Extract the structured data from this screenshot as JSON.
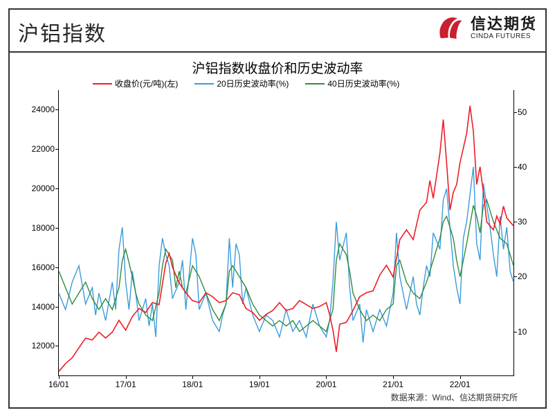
{
  "page_title": "沪铝指数",
  "brand": {
    "cn": "信达期货",
    "en": "CINDA FUTURES",
    "logo_color": "#c91f2e"
  },
  "chart": {
    "type": "line",
    "title": "沪铝指数收盘价和历史波动率",
    "title_fontsize": 19,
    "background_color": "#ffffff",
    "axis_color": "#000000",
    "label_fontsize": 12,
    "x": {
      "ticks": [
        "16/01",
        "17/01",
        "18/01",
        "19/01",
        "20/01",
        "21/01",
        "22/01"
      ],
      "positions": [
        0,
        1,
        2,
        3,
        4,
        5,
        6
      ],
      "xmax": 6.8
    },
    "y_left": {
      "label_suffix": "",
      "ticks": [
        12000,
        14000,
        16000,
        18000,
        20000,
        22000,
        24000
      ],
      "ymin": 10500,
      "ymax": 25000
    },
    "y_right": {
      "ticks": [
        10,
        20,
        30,
        40,
        50
      ],
      "ymin": 2,
      "ymax": 54
    },
    "legend": [
      {
        "label": "收盘价(元/吨)(左)",
        "color": "#ee1c25"
      },
      {
        "label": "20日历史波动率(%)",
        "color": "#3a9bdc"
      },
      {
        "label": "40日历史波动率(%)",
        "color": "#2e8b3d"
      }
    ],
    "series": {
      "close": {
        "axis": "left",
        "color": "#ee1c25",
        "width": 1.6,
        "data": [
          [
            0.0,
            10700
          ],
          [
            0.1,
            11100
          ],
          [
            0.2,
            11400
          ],
          [
            0.3,
            11900
          ],
          [
            0.4,
            12400
          ],
          [
            0.5,
            12300
          ],
          [
            0.6,
            12700
          ],
          [
            0.7,
            12400
          ],
          [
            0.8,
            12700
          ],
          [
            0.9,
            13300
          ],
          [
            1.0,
            12800
          ],
          [
            1.1,
            13500
          ],
          [
            1.2,
            13900
          ],
          [
            1.3,
            13700
          ],
          [
            1.4,
            14200
          ],
          [
            1.5,
            14100
          ],
          [
            1.6,
            16200
          ],
          [
            1.65,
            16700
          ],
          [
            1.7,
            16000
          ],
          [
            1.8,
            15200
          ],
          [
            1.9,
            14700
          ],
          [
            2.0,
            14300
          ],
          [
            2.1,
            14200
          ],
          [
            2.2,
            14700
          ],
          [
            2.3,
            14500
          ],
          [
            2.4,
            14200
          ],
          [
            2.5,
            14300
          ],
          [
            2.6,
            14700
          ],
          [
            2.7,
            14600
          ],
          [
            2.8,
            13900
          ],
          [
            2.9,
            13700
          ],
          [
            3.0,
            13300
          ],
          [
            3.1,
            13600
          ],
          [
            3.2,
            13800
          ],
          [
            3.3,
            14200
          ],
          [
            3.4,
            13800
          ],
          [
            3.5,
            13900
          ],
          [
            3.6,
            14300
          ],
          [
            3.7,
            14100
          ],
          [
            3.8,
            13900
          ],
          [
            3.9,
            14000
          ],
          [
            4.0,
            14200
          ],
          [
            4.05,
            13600
          ],
          [
            4.1,
            12800
          ],
          [
            4.15,
            11700
          ],
          [
            4.2,
            13100
          ],
          [
            4.3,
            13200
          ],
          [
            4.4,
            13800
          ],
          [
            4.5,
            14500
          ],
          [
            4.6,
            14700
          ],
          [
            4.7,
            14800
          ],
          [
            4.8,
            15600
          ],
          [
            4.9,
            16100
          ],
          [
            5.0,
            15500
          ],
          [
            5.1,
            17400
          ],
          [
            5.2,
            17900
          ],
          [
            5.3,
            17400
          ],
          [
            5.4,
            18900
          ],
          [
            5.5,
            19300
          ],
          [
            5.55,
            20400
          ],
          [
            5.6,
            19500
          ],
          [
            5.7,
            21800
          ],
          [
            5.75,
            23500
          ],
          [
            5.8,
            21300
          ],
          [
            5.85,
            18900
          ],
          [
            5.9,
            19800
          ],
          [
            5.95,
            20200
          ],
          [
            6.0,
            21300
          ],
          [
            6.1,
            22800
          ],
          [
            6.15,
            24200
          ],
          [
            6.2,
            22900
          ],
          [
            6.25,
            20200
          ],
          [
            6.3,
            21100
          ],
          [
            6.35,
            19800
          ],
          [
            6.4,
            18300
          ],
          [
            6.5,
            17900
          ],
          [
            6.55,
            18600
          ],
          [
            6.6,
            18200
          ],
          [
            6.65,
            19100
          ],
          [
            6.7,
            18500
          ],
          [
            6.8,
            18100
          ]
        ]
      },
      "vol20": {
        "axis": "right",
        "color": "#3a9bdc",
        "width": 1.4,
        "data": [
          [
            0.0,
            17
          ],
          [
            0.1,
            14
          ],
          [
            0.2,
            19
          ],
          [
            0.3,
            22
          ],
          [
            0.4,
            15
          ],
          [
            0.5,
            18
          ],
          [
            0.55,
            13
          ],
          [
            0.6,
            17
          ],
          [
            0.7,
            12
          ],
          [
            0.8,
            19
          ],
          [
            0.85,
            14
          ],
          [
            0.9,
            25
          ],
          [
            0.95,
            29
          ],
          [
            1.0,
            19
          ],
          [
            1.05,
            14
          ],
          [
            1.1,
            21
          ],
          [
            1.15,
            17
          ],
          [
            1.2,
            12
          ],
          [
            1.3,
            16
          ],
          [
            1.35,
            11
          ],
          [
            1.4,
            15
          ],
          [
            1.45,
            9
          ],
          [
            1.5,
            22
          ],
          [
            1.55,
            27
          ],
          [
            1.6,
            24
          ],
          [
            1.65,
            22
          ],
          [
            1.7,
            16
          ],
          [
            1.8,
            19
          ],
          [
            1.85,
            23
          ],
          [
            1.9,
            14
          ],
          [
            2.0,
            27
          ],
          [
            2.05,
            24
          ],
          [
            2.1,
            14
          ],
          [
            2.2,
            17
          ],
          [
            2.3,
            12
          ],
          [
            2.4,
            10
          ],
          [
            2.45,
            13
          ],
          [
            2.5,
            15
          ],
          [
            2.55,
            27
          ],
          [
            2.6,
            18
          ],
          [
            2.65,
            26
          ],
          [
            2.7,
            24
          ],
          [
            2.75,
            15
          ],
          [
            2.8,
            18
          ],
          [
            2.9,
            13
          ],
          [
            3.0,
            10
          ],
          [
            3.1,
            13
          ],
          [
            3.2,
            12
          ],
          [
            3.3,
            9
          ],
          [
            3.4,
            14
          ],
          [
            3.5,
            10
          ],
          [
            3.6,
            12
          ],
          [
            3.7,
            9
          ],
          [
            3.8,
            15
          ],
          [
            3.9,
            11
          ],
          [
            4.0,
            9
          ],
          [
            4.05,
            12
          ],
          [
            4.1,
            19
          ],
          [
            4.15,
            30
          ],
          [
            4.2,
            23
          ],
          [
            4.3,
            28
          ],
          [
            4.35,
            18
          ],
          [
            4.4,
            12
          ],
          [
            4.5,
            15
          ],
          [
            4.55,
            8
          ],
          [
            4.6,
            14
          ],
          [
            4.7,
            10
          ],
          [
            4.8,
            14
          ],
          [
            4.9,
            11
          ],
          [
            5.0,
            17
          ],
          [
            5.05,
            28
          ],
          [
            5.1,
            20
          ],
          [
            5.15,
            17
          ],
          [
            5.2,
            14
          ],
          [
            5.3,
            20
          ],
          [
            5.35,
            15
          ],
          [
            5.4,
            13
          ],
          [
            5.45,
            18
          ],
          [
            5.5,
            22
          ],
          [
            5.55,
            20
          ],
          [
            5.6,
            28
          ],
          [
            5.7,
            25
          ],
          [
            5.75,
            34
          ],
          [
            5.8,
            36
          ],
          [
            5.9,
            22
          ],
          [
            5.95,
            18
          ],
          [
            6.0,
            15
          ],
          [
            6.05,
            27
          ],
          [
            6.1,
            30
          ],
          [
            6.2,
            40
          ],
          [
            6.25,
            26
          ],
          [
            6.3,
            23
          ],
          [
            6.35,
            37
          ],
          [
            6.4,
            33
          ],
          [
            6.45,
            29
          ],
          [
            6.5,
            24
          ],
          [
            6.55,
            20
          ],
          [
            6.6,
            31
          ],
          [
            6.65,
            25
          ],
          [
            6.7,
            29
          ],
          [
            6.75,
            21
          ],
          [
            6.8,
            19
          ]
        ]
      },
      "vol40": {
        "axis": "right",
        "color": "#2e8b3d",
        "width": 1.4,
        "data": [
          [
            0.0,
            21
          ],
          [
            0.1,
            18
          ],
          [
            0.2,
            15
          ],
          [
            0.3,
            17
          ],
          [
            0.4,
            19
          ],
          [
            0.5,
            16
          ],
          [
            0.6,
            14
          ],
          [
            0.7,
            16
          ],
          [
            0.8,
            14
          ],
          [
            0.9,
            18
          ],
          [
            0.95,
            23
          ],
          [
            1.0,
            25
          ],
          [
            1.1,
            20
          ],
          [
            1.15,
            17
          ],
          [
            1.2,
            15
          ],
          [
            1.3,
            13
          ],
          [
            1.4,
            12
          ],
          [
            1.5,
            17
          ],
          [
            1.55,
            22
          ],
          [
            1.6,
            25
          ],
          [
            1.7,
            23
          ],
          [
            1.75,
            18
          ],
          [
            1.8,
            21
          ],
          [
            1.85,
            18
          ],
          [
            1.9,
            17
          ],
          [
            2.0,
            22
          ],
          [
            2.1,
            20
          ],
          [
            2.2,
            17
          ],
          [
            2.3,
            14
          ],
          [
            2.4,
            12
          ],
          [
            2.5,
            15
          ],
          [
            2.55,
            21
          ],
          [
            2.6,
            22
          ],
          [
            2.7,
            20
          ],
          [
            2.8,
            18
          ],
          [
            2.9,
            15
          ],
          [
            3.0,
            13
          ],
          [
            3.1,
            12
          ],
          [
            3.2,
            11
          ],
          [
            3.3,
            12
          ],
          [
            3.4,
            11
          ],
          [
            3.5,
            12
          ],
          [
            3.6,
            10
          ],
          [
            3.7,
            11
          ],
          [
            3.8,
            12
          ],
          [
            3.9,
            11
          ],
          [
            4.0,
            10
          ],
          [
            4.1,
            14
          ],
          [
            4.15,
            23
          ],
          [
            4.2,
            26
          ],
          [
            4.3,
            24
          ],
          [
            4.35,
            21
          ],
          [
            4.4,
            17
          ],
          [
            4.5,
            14
          ],
          [
            4.6,
            12
          ],
          [
            4.7,
            13
          ],
          [
            4.8,
            12
          ],
          [
            4.9,
            14
          ],
          [
            5.0,
            15
          ],
          [
            5.05,
            22
          ],
          [
            5.1,
            23
          ],
          [
            5.2,
            19
          ],
          [
            5.3,
            17
          ],
          [
            5.4,
            16
          ],
          [
            5.5,
            19
          ],
          [
            5.6,
            23
          ],
          [
            5.7,
            27
          ],
          [
            5.75,
            30
          ],
          [
            5.8,
            31
          ],
          [
            5.9,
            27
          ],
          [
            5.95,
            23
          ],
          [
            6.0,
            20
          ],
          [
            6.1,
            26
          ],
          [
            6.2,
            33
          ],
          [
            6.25,
            31
          ],
          [
            6.3,
            28
          ],
          [
            6.35,
            33
          ],
          [
            6.4,
            34
          ],
          [
            6.5,
            30
          ],
          [
            6.6,
            27
          ],
          [
            6.7,
            26
          ],
          [
            6.75,
            24
          ],
          [
            6.8,
            22
          ]
        ]
      }
    }
  },
  "source": "数据来源：Wind、信达期货研究所"
}
